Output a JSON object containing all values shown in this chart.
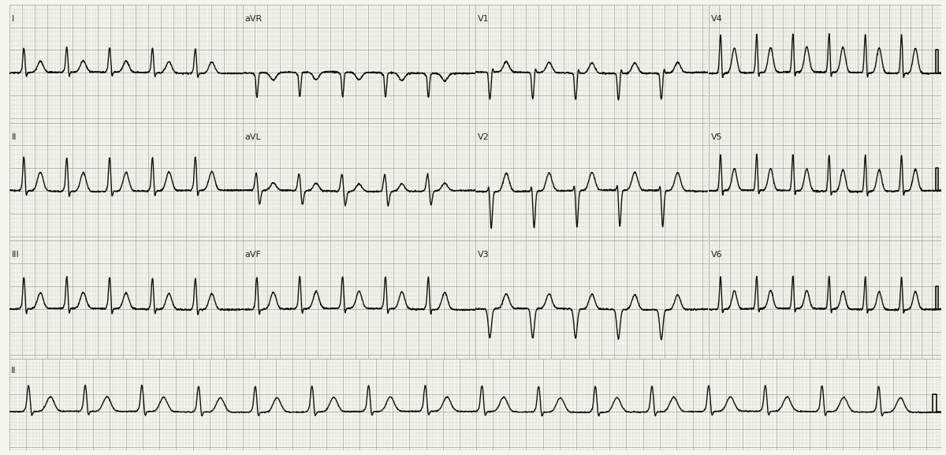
{
  "bg_color": "#f5f5f0",
  "grid_minor_color": "#c8c8c0",
  "grid_major_color": "#a0a098",
  "line_color": "#111111",
  "line_width": 1.0,
  "fig_width": 12.0,
  "fig_height": 5.77,
  "lead_labels_row1": [
    "I",
    "aVR",
    "V1",
    "V4"
  ],
  "lead_labels_row2": [
    "II",
    "aVL",
    "V2",
    "V5"
  ],
  "lead_labels_row3": [
    "III",
    "aVF",
    "V3",
    "V6"
  ],
  "lead_labels_row4": [
    "II"
  ],
  "label_fontsize": 8
}
